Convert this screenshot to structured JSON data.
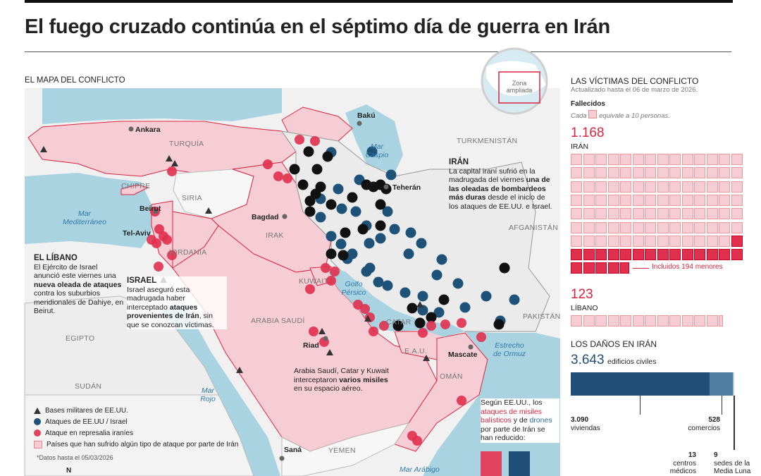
{
  "header": {
    "title": "El fuego cruzado continúa en el séptimo día de guerra en Irán"
  },
  "map": {
    "title": "EL MAPA DEL CONFLICTO",
    "inset_label": "Zona ampliada",
    "places": {
      "baku": "Bakú",
      "ankara": "Ankara",
      "turquia": "TURQUÍA",
      "caspio": "Mar Caspio",
      "turkmenistan": "TURKMENISTÁN",
      "teheran": "Teherán",
      "chipre": "CHIPRE",
      "siria": "SIRIA",
      "mediterraneo": "Mar Mediterráneo",
      "beirut": "Beirut",
      "telaviv": "Tel-Aviv",
      "bagdad": "Bagdad",
      "irak": "IRAK",
      "jordania": "JORDANIA",
      "afganistan": "AFGANISTÁN",
      "kuwait": "KUWAIT",
      "golfo": "Golfo Pérsico",
      "arabia": "ARABIA SAUDÍ",
      "egipto": "EGIPTO",
      "catar": "CATAR",
      "pakistan": "PAKISTÁN",
      "riad": "Riad",
      "eau": "E.A.U.",
      "mascate": "Mascate",
      "ormuz": "Estrecho de Ormuz",
      "sudan": "SUDÁN",
      "oman": "OMÁN",
      "rojo": "Mar Rojo",
      "sana": "Saná",
      "yemen": "YEMEN",
      "arabigo": "Mar Arábigo"
    },
    "notes": {
      "iran": {
        "title": "IRÁN",
        "parts": [
          "La capital iraní sufrió en la madrugada del viernes ",
          "una de las oleadas de bombardeos más duras",
          " desde el inicio de los ataques de EE.UU. e Israel."
        ]
      },
      "libano": {
        "title": "EL LÍBANO",
        "parts": [
          "El Ejército de Israel anunció este viernes una ",
          "nueva oleada de ataques",
          " contra los suburbios meridionales de Dahiye, en Beirut."
        ]
      },
      "israel": {
        "title": "ISRAEL",
        "parts": [
          "Israel aseguró esta madrugada haber interceptado ",
          "ataques provenientes de Irán",
          ", sin que se conozcan víctimas."
        ]
      },
      "golfo": {
        "parts": [
          "Arabia Saudí, Catar y Kuwait interceptaron ",
          "varios misiles",
          " en su espacio aéreo."
        ]
      }
    },
    "missiles": {
      "parts": [
        "Según EE.UU., los ",
        "ataques de misiles balísticos",
        " y de ",
        "drones",
        " por parte de Irán se han reducido:"
      ],
      "colors": [
        "#222222",
        "#d9253f",
        "#222222",
        "#2b6f9e",
        "#222222"
      ]
    },
    "legend": [
      {
        "label": "Bases militares de EE.UU.",
        "color": "#333333"
      },
      {
        "label": "Ataques de EE.UU / Israel",
        "color": "#1f5278"
      },
      {
        "label": "Ataque en represalia iraníes",
        "color": "#e0435d"
      },
      {
        "label": "Países que han sufrido algún tipo de ataque por parte de Irán",
        "color": "#f7cdd5"
      }
    ],
    "footnote": "*Datos hasta el 05/03/2026",
    "north": "N"
  },
  "victims": {
    "title": "LAS VÍCTIMAS DEL CONFLICTO",
    "updated": "Actualizado hasta el 06 de marzo de 2026.",
    "subtitle": "Fallecidos",
    "unit_note": [
      "Cada",
      "equivale a 10 personas."
    ],
    "unit": 10,
    "countries": [
      {
        "label": "IRÁN",
        "value": 1168,
        "value_label": "1.168",
        "minors": 194,
        "minors_label": "Incluidos 194 menores"
      },
      {
        "label": "LÍBANO",
        "value": 123,
        "value_label": "123"
      }
    ]
  },
  "damage": {
    "title": "LOS DAÑOS EN IRÁN",
    "total": 3643,
    "total_label": "3.643",
    "total_unit": "edificios civiles",
    "segments": [
      {
        "value": 3090,
        "value_label": "3.090",
        "label": "viviendas",
        "color": "#1f4f78"
      },
      {
        "value": 528,
        "value_label": "528",
        "label": "comercios",
        "color": "#4f7ea3"
      },
      {
        "value": 13,
        "value_label": "13",
        "label": "centros médicos",
        "color": "#9fbcd3"
      },
      {
        "value": 9,
        "value_label": "9",
        "label": "sedes de la Media Luna",
        "color": "#c9dae7"
      }
    ]
  }
}
